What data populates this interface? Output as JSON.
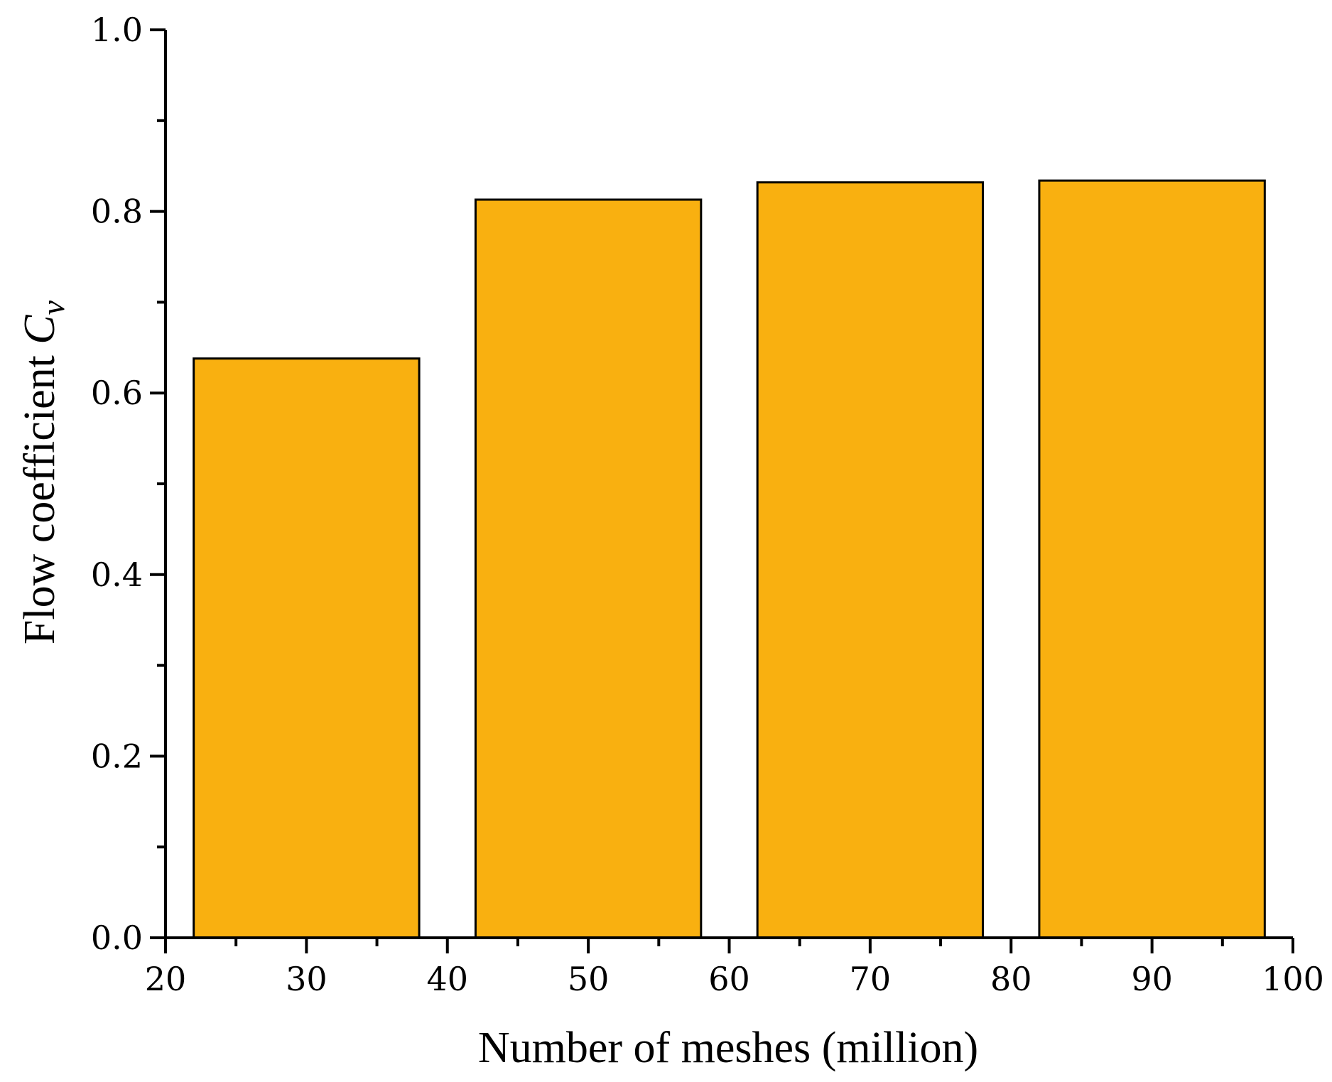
{
  "chart_data": {
    "type": "bar",
    "title": "",
    "xlabel": "Number of meshes (million)",
    "ylabel": {
      "prefix": "Flow coefficient ",
      "symbol": "C",
      "subscript": "v"
    },
    "x": [
      30,
      50,
      70,
      90
    ],
    "values": [
      0.638,
      0.813,
      0.832,
      0.834
    ],
    "bar_width": 16,
    "xlim": [
      20,
      100
    ],
    "ylim": [
      0.0,
      1.0
    ],
    "xticks": [
      20,
      30,
      40,
      50,
      60,
      70,
      80,
      90,
      100
    ],
    "xtick_labels": [
      "20",
      "30",
      "40",
      "50",
      "60",
      "70",
      "80",
      "90",
      "100"
    ],
    "xminor": [
      25,
      35,
      45,
      55,
      65,
      75,
      85,
      95
    ],
    "yticks": [
      0.0,
      0.2,
      0.4,
      0.6,
      0.8,
      1.0
    ],
    "ytick_labels": [
      "0.0",
      "0.2",
      "0.4",
      "0.6",
      "0.8",
      "1.0"
    ],
    "yminor": [
      0.1,
      0.3,
      0.5,
      0.7,
      0.9
    ],
    "grid": false,
    "legend": "none",
    "colors": {
      "bar_fill": "#F9B010",
      "bar_stroke": "#000000",
      "axis": "#000000"
    }
  }
}
